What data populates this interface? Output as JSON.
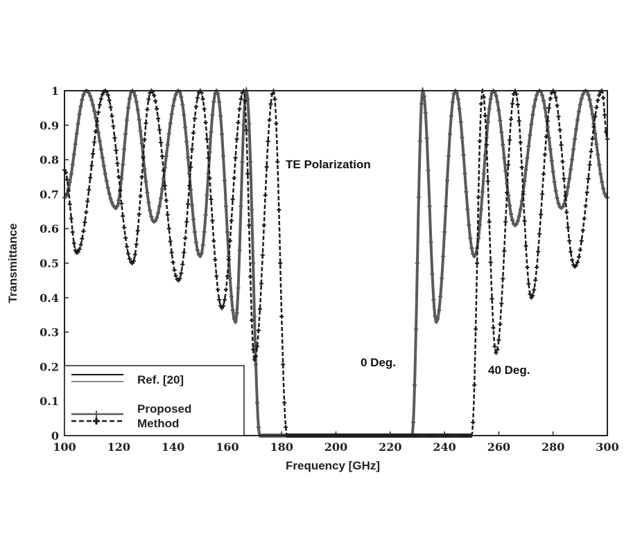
{
  "chart_data": {
    "type": "line",
    "title": "",
    "xlabel": "Frequency [GHz]",
    "ylabel": "Transmittance",
    "xlim": [
      100,
      300
    ],
    "ylim": [
      0,
      1
    ],
    "xticks": [
      "100",
      "120",
      "140",
      "160",
      "180",
      "200",
      "220",
      "240",
      "260",
      "280",
      "300"
    ],
    "yticks": [
      "0",
      "0.1",
      "0.2",
      "0.3",
      "0.4",
      "0.5",
      "0.6",
      "0.7",
      "0.8",
      "0.9",
      "1"
    ],
    "grid": false,
    "legend": {
      "placement": "bottom-left",
      "entries": [
        {
          "label": "Ref. [20]",
          "styles": [
            "solid-black",
            "solid-gray"
          ]
        },
        {
          "label": "Proposed",
          "label2": "Method",
          "styles": [
            "solid-marker",
            "dashed-marker"
          ]
        }
      ]
    },
    "annotations": {
      "polarization": "TE Polarization",
      "deg0": "0 Deg.",
      "deg40": "40 Deg."
    },
    "series": [
      {
        "name": "0 Deg.",
        "color": "#5a5a5a",
        "style": "solid",
        "x": [
          100,
          108,
          119,
          125,
          133,
          142,
          150,
          156,
          163,
          167,
          172,
          228,
          232,
          237,
          244,
          251,
          258,
          266,
          275,
          283,
          292,
          300
        ],
        "y": [
          0.69,
          1.0,
          0.66,
          1.0,
          0.62,
          1.0,
          0.52,
          1.0,
          0.33,
          1.0,
          0.0,
          0.0,
          1.0,
          0.33,
          1.0,
          0.52,
          1.0,
          0.61,
          1.0,
          0.66,
          1.0,
          0.69
        ]
      },
      {
        "name": "40 Deg.",
        "color": "#1a1a1a",
        "style": "dashed",
        "x": [
          100,
          104.5,
          115,
          125,
          132,
          142,
          150,
          158,
          166,
          170,
          177,
          182,
          250,
          254,
          259,
          266,
          272,
          280,
          288,
          298,
          300
        ],
        "y": [
          0.77,
          0.53,
          1.0,
          0.5,
          1.0,
          0.45,
          1.0,
          0.37,
          1.0,
          0.22,
          1.0,
          0.0,
          0.0,
          1.0,
          0.24,
          1.0,
          0.4,
          1.0,
          0.49,
          1.0,
          0.86
        ]
      }
    ]
  }
}
